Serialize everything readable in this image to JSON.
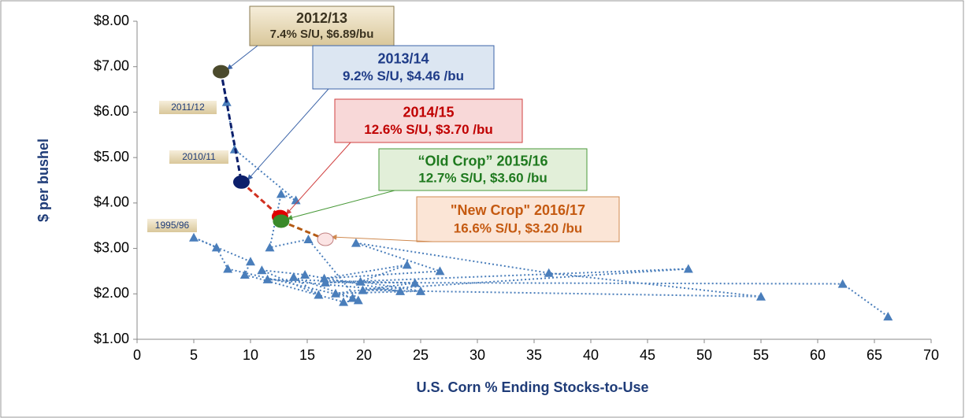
{
  "chart_data": {
    "type": "scatter",
    "xlabel": "U.S. Corn % Ending Stocks-to-Use",
    "ylabel": "$ per bushel",
    "xlim": [
      0,
      70
    ],
    "ylim": [
      1,
      8
    ],
    "xticks": [
      0,
      5,
      10,
      15,
      20,
      25,
      30,
      35,
      40,
      45,
      50,
      55,
      60,
      65,
      70
    ],
    "yticks": [
      {
        "value": 1,
        "label": "$1.00"
      },
      {
        "value": 2,
        "label": "$2.00"
      },
      {
        "value": 3,
        "label": "$3.00"
      },
      {
        "value": 4,
        "label": "$4.00"
      },
      {
        "value": 5,
        "label": "$5.00"
      },
      {
        "value": 6,
        "label": "$6.00"
      },
      {
        "value": 7,
        "label": "$7.00"
      },
      {
        "value": 8,
        "label": "$8.00"
      }
    ],
    "series": [
      {
        "color": "#4a7ebb",
        "x": [
          66.2,
          62.2,
          16.6,
          48.6,
          19.9,
          55,
          36.3,
          19.3,
          26.7,
          16.5,
          23.8,
          19.7,
          25,
          17.5,
          24.5,
          11.5,
          23.2,
          14.8,
          11,
          16,
          13.8,
          19,
          8,
          7,
          5,
          10,
          9.5,
          18.2,
          19.5,
          15.1,
          11.7,
          12.7,
          14,
          8.6,
          7.9
        ],
        "values": [
          1.5,
          2.22,
          2.25,
          2.55,
          2.08,
          1.94,
          2.46,
          3.12,
          2.5,
          2.34,
          2.64,
          2.27,
          2.06,
          2.01,
          2.24,
          2.32,
          2.06,
          2.42,
          2.52,
          1.98,
          2.37,
          1.91,
          2.55,
          3.02,
          3.24,
          2.71,
          2.42,
          1.82,
          1.86,
          3.2,
          3.02,
          4.2,
          4.06,
          5.18,
          6.22
        ]
      }
    ],
    "annotations": [
      "1995/96",
      "2010/11",
      "2011/12"
    ],
    "highlights": [
      {
        "title": "2012/13",
        "text": "7.4% S/U, $6.89/bu",
        "x": 7.4,
        "value": 6.89,
        "color": "#4b4a2c"
      },
      {
        "title": "2013/14",
        "text": "9.2% S/U, $4.46 /bu",
        "x": 9.2,
        "value": 4.46,
        "color": "#0c1f6b"
      },
      {
        "title": "2014/15",
        "text": "12.6% S/U, $3.70 /bu",
        "x": 12.6,
        "value": 3.7,
        "color": "#e00000"
      },
      {
        "title": "“Old Crop” 2015/16",
        "text": "12.7% S/U, $3.60 /bu",
        "x": 12.7,
        "value": 3.6,
        "color": "#3a8a2a"
      },
      {
        "title": "\"New Crop\" 2016/17",
        "text": "16.6% S/U, $3.20 /bu",
        "x": 16.6,
        "value": 3.2,
        "color": "#fbe4e4"
      }
    ]
  }
}
